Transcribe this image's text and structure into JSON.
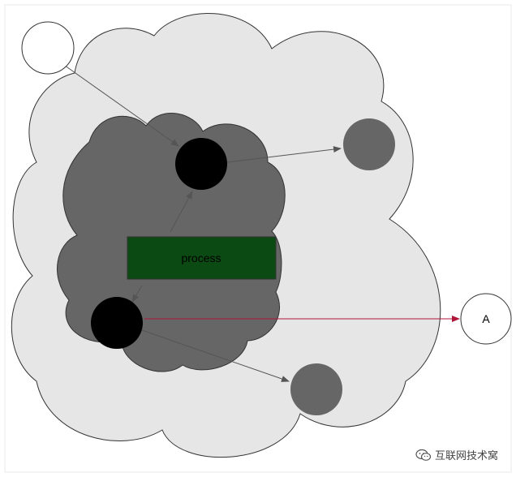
{
  "process_label": "process",
  "external_node_label": "A",
  "watermark_text": "互联网技术窝",
  "colors": {
    "outer_cloud": "#e6e6e6",
    "inner_cloud": "#666666",
    "process_box": "#0b4a12",
    "black_node": "#000000",
    "grey_node": "#666666",
    "arrow": "#555555",
    "external_arrow": "#b0153a",
    "outline": "#333333"
  },
  "icons": {
    "watermark_logo": "wechat-icon"
  }
}
